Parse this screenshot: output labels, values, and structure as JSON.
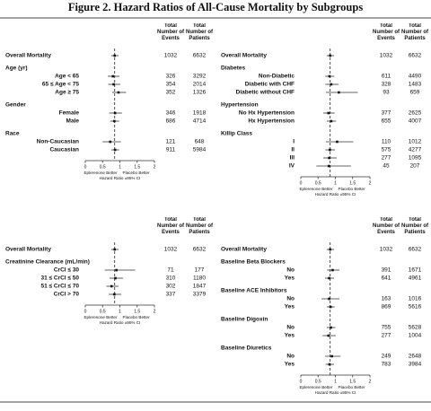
{
  "title": "Figure 2.  Hazard Ratios of All-Cause Mortality by Subgroups",
  "chart_data": [
    {
      "type": "forest",
      "xlim": [
        0,
        2
      ],
      "xticks": [
        0,
        0.5,
        1,
        1.5,
        2
      ],
      "column_headers": [
        "Total Number of Events",
        "Total Number of Patients"
      ],
      "left_label": "Eplerenone Better",
      "right_label": "Placebo Better",
      "xlabel": "Hazard Ratio ±95% CI",
      "rows": [
        {
          "label": "Overall Mortality",
          "events": 1032,
          "patients": 6632,
          "hr": 0.85,
          "lo": 0.75,
          "hi": 0.96
        },
        {
          "label": "Age (yr)"
        },
        {
          "label": "Age < 65",
          "events": 326,
          "patients": 3292,
          "hr": 0.8,
          "lo": 0.65,
          "hi": 0.99
        },
        {
          "label": "65 ≤ Age < 75",
          "events": 354,
          "patients": 2014,
          "hr": 0.82,
          "lo": 0.66,
          "hi": 1.01
        },
        {
          "label": "Age ≥ 75",
          "events": 352,
          "patients": 1326,
          "hr": 0.96,
          "lo": 0.78,
          "hi": 1.18
        },
        {
          "label": "Gender"
        },
        {
          "label": "Female",
          "events": 346,
          "patients": 1918,
          "hr": 0.86,
          "lo": 0.69,
          "hi": 1.06
        },
        {
          "label": "Male",
          "events": 686,
          "patients": 4714,
          "hr": 0.84,
          "lo": 0.72,
          "hi": 0.98
        },
        {
          "label": "Race"
        },
        {
          "label": "Non-Caucasian",
          "events": 121,
          "patients": 648,
          "hr": 0.72,
          "lo": 0.5,
          "hi": 1.03
        },
        {
          "label": "Caucasian",
          "events": 911,
          "patients": 5984,
          "hr": 0.86,
          "lo": 0.75,
          "hi": 0.98
        }
      ]
    },
    {
      "type": "forest",
      "xlim": [
        0,
        2
      ],
      "xticks": [
        0,
        0.5,
        1,
        1.5,
        2
      ],
      "column_headers": [
        "Total Number of Events",
        "Total Number of Patients"
      ],
      "left_label": "Eplerenone Better",
      "right_label": "Placebo Better",
      "xlabel": "Hazard Ratio ±95% CI",
      "rows": [
        {
          "label": "Overall Mortality",
          "events": 1032,
          "patients": 6632,
          "hr": 0.85,
          "lo": 0.75,
          "hi": 0.96
        },
        {
          "label": "Diabetes"
        },
        {
          "label": "Non-Diabetic",
          "events": 611,
          "patients": 4490,
          "hr": 0.83,
          "lo": 0.71,
          "hi": 0.97
        },
        {
          "label": "Diabetic with CHF",
          "events": 328,
          "patients": 1483,
          "hr": 0.88,
          "lo": 0.71,
          "hi": 1.09
        },
        {
          "label": "Diabetic without CHF",
          "events": 93,
          "patients": 659,
          "hr": 1.1,
          "lo": 0.73,
          "hi": 1.65
        },
        {
          "label": "Hypertension"
        },
        {
          "label": "No Hx Hypertension",
          "events": 377,
          "patients": 2625,
          "hr": 0.8,
          "lo": 0.65,
          "hi": 0.98
        },
        {
          "label": "Hx Hypertension",
          "events": 655,
          "patients": 4007,
          "hr": 0.88,
          "lo": 0.75,
          "hi": 1.02
        },
        {
          "label": "Killip Class"
        },
        {
          "label": "I",
          "events": 110,
          "patients": 1012,
          "hr": 1.05,
          "lo": 0.72,
          "hi": 1.52
        },
        {
          "label": "II",
          "events": 575,
          "patients": 4277,
          "hr": 0.84,
          "lo": 0.71,
          "hi": 0.99
        },
        {
          "label": "III",
          "events": 277,
          "patients": 1095,
          "hr": 0.82,
          "lo": 0.65,
          "hi": 1.04
        },
        {
          "label": "IV",
          "events": 45,
          "patients": 207,
          "hr": 0.81,
          "lo": 0.45,
          "hi": 1.45
        }
      ]
    },
    {
      "type": "forest",
      "xlim": [
        0,
        2
      ],
      "xticks": [
        0,
        0.5,
        1,
        1.5,
        2
      ],
      "column_headers": [
        "Total Number of Events",
        "Total Number of Patients"
      ],
      "left_label": "Eplerenone Better",
      "right_label": "Placebo Better",
      "xlabel": "Hazard Ratio ±95% CI",
      "rows": [
        {
          "label": "Overall Mortality",
          "events": 1032,
          "patients": 6632,
          "hr": 0.85,
          "lo": 0.75,
          "hi": 0.96
        },
        {
          "label": "Creatinine Clearance (mL/min)"
        },
        {
          "label": "CrCl ≤ 30",
          "events": 71,
          "patients": 177,
          "hr": 0.9,
          "lo": 0.56,
          "hi": 1.44
        },
        {
          "label": "31 ≤ CrCl ≤ 50",
          "events": 310,
          "patients": 1180,
          "hr": 0.87,
          "lo": 0.7,
          "hi": 1.09
        },
        {
          "label": "51 ≤ CrCl ≤ 70",
          "events": 302,
          "patients": 1847,
          "hr": 0.76,
          "lo": 0.61,
          "hi": 0.96
        },
        {
          "label": "CrCl > 70",
          "events": 337,
          "patients": 3379,
          "hr": 0.84,
          "lo": 0.68,
          "hi": 1.04
        }
      ]
    },
    {
      "type": "forest",
      "xlim": [
        0,
        2
      ],
      "xticks": [
        0,
        0.5,
        1,
        1.5,
        2
      ],
      "column_headers": [
        "Total Number of Events",
        "Total Number of Patients"
      ],
      "left_label": "Eplerenone Better",
      "right_label": "Placebo Better",
      "xlabel": "Hazard Ratio ±95% CI",
      "rows": [
        {
          "label": "Overall Mortality",
          "events": 1032,
          "patients": 6632,
          "hr": 0.85,
          "lo": 0.75,
          "hi": 0.96
        },
        {
          "label": "Baseline Beta Blockers"
        },
        {
          "label": "No",
          "events": 391,
          "patients": 1671,
          "hr": 0.92,
          "lo": 0.76,
          "hi": 1.12
        },
        {
          "label": "Yes",
          "events": 641,
          "patients": 4961,
          "hr": 0.82,
          "lo": 0.7,
          "hi": 0.96
        },
        {
          "label": "Baseline ACE Inhibitors"
        },
        {
          "label": "No",
          "events": 163,
          "patients": 1016,
          "hr": 0.82,
          "lo": 0.6,
          "hi": 1.12
        },
        {
          "label": "Yes",
          "events": 869,
          "patients": 5616,
          "hr": 0.86,
          "lo": 0.75,
          "hi": 0.98
        },
        {
          "label": "Baseline Digoxin"
        },
        {
          "label": "No",
          "events": 755,
          "patients": 5628,
          "hr": 0.87,
          "lo": 0.75,
          "hi": 1.0
        },
        {
          "label": "Yes",
          "events": 277,
          "patients": 1004,
          "hr": 0.8,
          "lo": 0.63,
          "hi": 1.01
        },
        {
          "label": "Baseline Diuretics"
        },
        {
          "label": "No",
          "events": 249,
          "patients": 2648,
          "hr": 0.9,
          "lo": 0.7,
          "hi": 1.15
        },
        {
          "label": "Yes",
          "events": 783,
          "patients": 3984,
          "hr": 0.83,
          "lo": 0.72,
          "hi": 0.96
        }
      ]
    }
  ]
}
